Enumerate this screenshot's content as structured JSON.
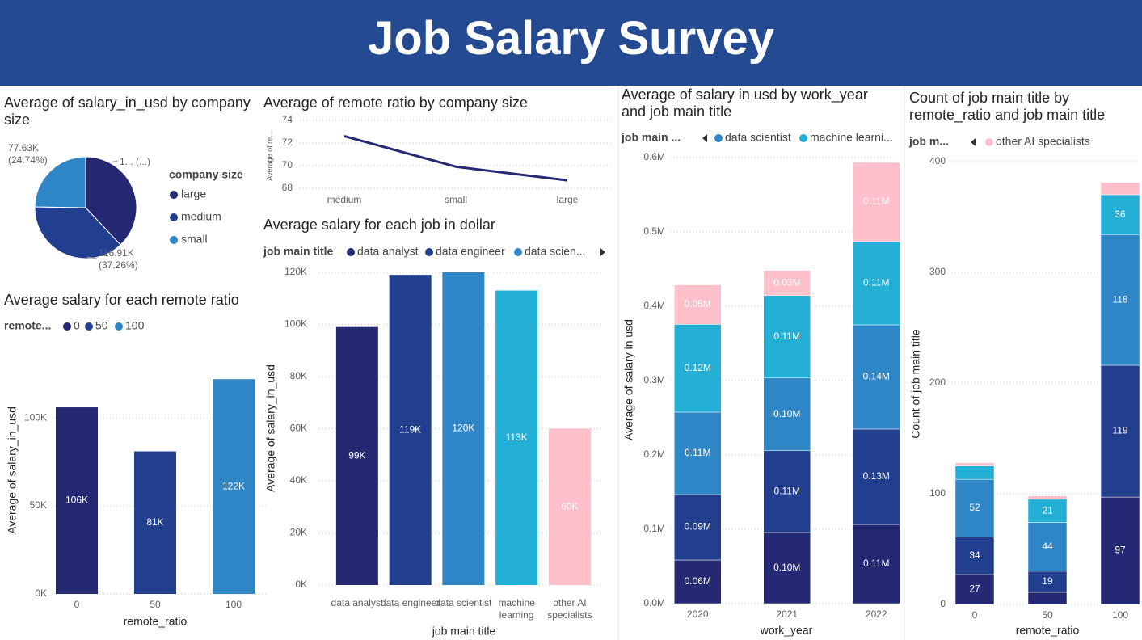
{
  "title": "Job Salary Survey",
  "chart_data": [
    {
      "type": "pie",
      "title": "Average of salary_in_usd by company size",
      "legend_title": "company size",
      "categories": [
        "large",
        "medium",
        "small"
      ],
      "values": [
        119.24,
        116.91,
        77.63
      ],
      "value_labels": [
        "1... (...)",
        "116.91K (37.26%)",
        "77.63K (24.74%)"
      ],
      "colors": [
        "#252872",
        "#223f8f",
        "#2f86c6"
      ],
      "legend": [
        {
          "label": "large",
          "color": "#252872"
        },
        {
          "label": "medium",
          "color": "#223f8f"
        },
        {
          "label": "small",
          "color": "#2f86c6"
        }
      ]
    },
    {
      "type": "line",
      "title": "Average of remote ratio by company size",
      "y_label": "Average of re...",
      "categories": [
        "medium",
        "small",
        "large"
      ],
      "values": [
        72.6,
        69.9,
        68.7
      ],
      "color": "#252872",
      "ylim": [
        67.5,
        74.2
      ],
      "yticks": [
        68,
        70,
        72,
        74
      ],
      "grid": true
    },
    {
      "type": "bar",
      "title": "Average salary for each remote ratio",
      "legend_title": "remote...",
      "legend": [
        {
          "label": "0",
          "color": "#252872"
        },
        {
          "label": "50",
          "color": "#223f8f"
        },
        {
          "label": "100",
          "color": "#2f86c6"
        }
      ],
      "x_label": "remote_ratio",
      "y_label": "Average of salary_in_usd",
      "categories": [
        "0",
        "50",
        "100"
      ],
      "values": [
        106000,
        81000,
        122000
      ],
      "value_labels": [
        "106K",
        "81K",
        "122K"
      ],
      "colors": [
        "#252872",
        "#223f8f",
        "#2f86c6"
      ],
      "ylim": [
        0,
        140000
      ],
      "yticks": [
        {
          "value": 0,
          "label": "0K"
        },
        {
          "value": 50000,
          "label": "50K"
        },
        {
          "value": 100000,
          "label": "100K"
        }
      ],
      "grid": true
    },
    {
      "type": "bar",
      "title": "Average salary for each job in dollar",
      "legend_title": "job main title",
      "legend": [
        {
          "label": "data analyst",
          "color": "#252872"
        },
        {
          "label": "data engineer",
          "color": "#223f8f"
        },
        {
          "label": "data scien...",
          "color": "#2f86c6"
        }
      ],
      "x_label": "job main title",
      "y_label": "Average of salary_in_usd",
      "categories": [
        "data analyst",
        "data engineer",
        "data scientist",
        "machine learning",
        "other AI specialists"
      ],
      "values": [
        99000,
        119000,
        120000,
        113000,
        60000
      ],
      "value_labels": [
        "99K",
        "119K",
        "120K",
        "113K",
        "60K"
      ],
      "colors": [
        "#252872",
        "#223f8f",
        "#2f86c6",
        "#24b0d6",
        "#ffc0cb"
      ],
      "ylim": [
        0,
        122000
      ],
      "yticks": [
        {
          "value": 0,
          "label": "0K"
        },
        {
          "value": 20000,
          "label": "20K"
        },
        {
          "value": 40000,
          "label": "40K"
        },
        {
          "value": 60000,
          "label": "60K"
        },
        {
          "value": 80000,
          "label": "80K"
        },
        {
          "value": 100000,
          "label": "100K"
        },
        {
          "value": 120000,
          "label": "120K"
        }
      ],
      "grid": true
    },
    {
      "type": "stacked_bar",
      "title": "Average of salary in usd by work_year and job main title",
      "legend_title": "job main ...",
      "legend": [
        {
          "label": "data scientist",
          "color": "#2f86c6"
        },
        {
          "label": "machine learni...",
          "color": "#24b0d6"
        }
      ],
      "x_label": "work_year",
      "y_label": "Average of salary in usd",
      "categories": [
        "2020",
        "2021",
        "2022"
      ],
      "series": [
        {
          "color": "#252872",
          "values": [
            58700,
            95700,
            106500
          ],
          "value_labels": [
            "0.06M",
            "0.10M",
            "0.11M"
          ]
        },
        {
          "color": "#223f8f",
          "values": [
            88000,
            110000,
            128300
          ],
          "value_labels": [
            "0.09M",
            "0.11M",
            "0.13M"
          ]
        },
        {
          "color": "#2f86c6",
          "values": [
            111000,
            97800,
            140200
          ],
          "value_labels": [
            "0.11M",
            "0.10M",
            "0.14M"
          ]
        },
        {
          "color": "#24b0d6",
          "values": [
            118000,
            111000,
            112000
          ],
          "value_labels": [
            "0.12M",
            "0.11M",
            "0.11M"
          ]
        },
        {
          "color": "#ffc0cb",
          "values": [
            53000,
            33700,
            106500
          ],
          "value_labels": [
            "0.05M",
            "0.03M",
            "0.11M"
          ]
        }
      ],
      "ylim": [
        0,
        605000
      ],
      "yticks": [
        {
          "value": 0,
          "label": "0.0M"
        },
        {
          "value": 100000,
          "label": "0.1M"
        },
        {
          "value": 200000,
          "label": "0.2M"
        },
        {
          "value": 300000,
          "label": "0.3M"
        },
        {
          "value": 400000,
          "label": "0.4M"
        },
        {
          "value": 500000,
          "label": "0.5M"
        },
        {
          "value": 600000,
          "label": "0.6M"
        }
      ],
      "grid": true
    },
    {
      "type": "stacked_bar",
      "title": "Count of job main title by remote_ratio and job main title",
      "legend_title": "job m...",
      "legend": [
        {
          "label": "other AI specialists",
          "color": "#ffc0cb"
        }
      ],
      "x_label": "remote_ratio",
      "y_label": "Count of job main title",
      "categories": [
        "0",
        "50",
        "100"
      ],
      "series": [
        {
          "color": "#252872",
          "values": [
            27,
            11,
            97
          ]
        },
        {
          "color": "#223f8f",
          "values": [
            34,
            19,
            119
          ]
        },
        {
          "color": "#2f86c6",
          "values": [
            52,
            44,
            118
          ]
        },
        {
          "color": "#24b0d6",
          "values": [
            12,
            21,
            36
          ]
        },
        {
          "color": "#ffc0cb",
          "values": [
            3,
            3,
            11
          ]
        }
      ],
      "ylim": [
        0,
        405
      ],
      "yticks": [
        0,
        100,
        200,
        300,
        400
      ],
      "grid": true
    }
  ]
}
